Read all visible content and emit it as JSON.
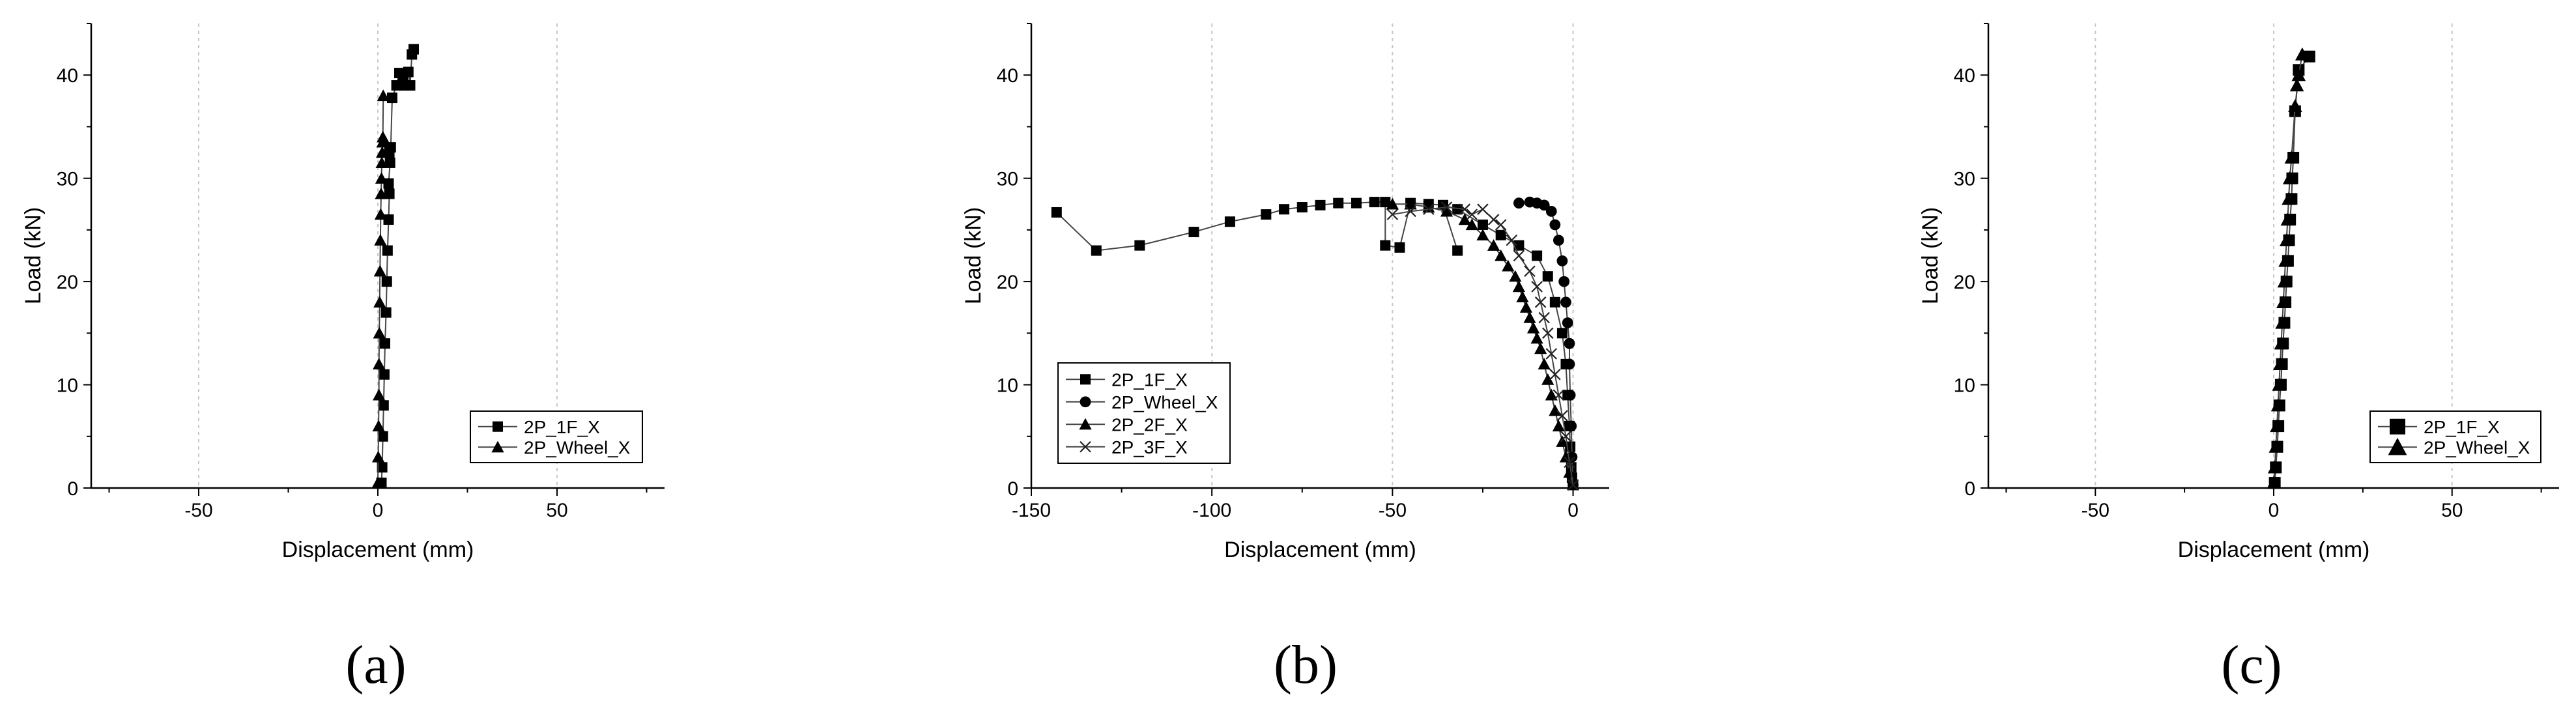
{
  "chart_data": [
    {
      "type": "line",
      "panel_label": "(a)",
      "xlabel": "Displacement (mm)",
      "ylabel": "Load (kN)",
      "xlim": [
        -80,
        80
      ],
      "ylim": [
        0,
        45
      ],
      "xticks": [
        -50,
        0,
        50
      ],
      "yticks": [
        0,
        10,
        20,
        30,
        40
      ],
      "grid": "vertical dashed",
      "legend_position": "lower-right",
      "series": [
        {
          "name": "2P_1F_X",
          "marker": "square",
          "x": [
            1,
            1.2,
            1.4,
            1.6,
            1.8,
            2.0,
            2.3,
            2.5,
            2.7,
            3.0,
            3.2,
            3.0,
            3.4,
            3.2,
            3.6,
            4.0,
            5.2,
            6.0,
            7.0,
            7.5,
            8.5,
            9.0,
            9.5,
            10
          ],
          "y": [
            0.5,
            2,
            5,
            8,
            11,
            14,
            17,
            20,
            23,
            26,
            28.5,
            29.5,
            31.5,
            32.5,
            33,
            37.8,
            39.0,
            40.2,
            39.5,
            39.0,
            40.3,
            39.0,
            42.0,
            42.5
          ]
        },
        {
          "name": "2P_Wheel_X",
          "marker": "triangle",
          "x": [
            0,
            0.1,
            0.2,
            0.3,
            0.3,
            0.4,
            0.5,
            0.6,
            0.7,
            0.8,
            0.9,
            1.0,
            1.1,
            1.2,
            1.3,
            1.4,
            1.5
          ],
          "y": [
            0.5,
            3,
            6,
            9,
            12,
            15,
            18,
            21,
            24,
            26.5,
            28.5,
            30,
            31.5,
            32.5,
            33.5,
            34,
            38
          ]
        }
      ]
    },
    {
      "type": "line",
      "panel_label": "(b)",
      "xlabel": "Displacement (mm)",
      "ylabel": "Load (kN)",
      "xlim": [
        -150,
        10
      ],
      "ylim": [
        0,
        45
      ],
      "xticks": [
        -150,
        -100,
        -50,
        0
      ],
      "yticks": [
        0,
        10,
        20,
        30,
        40
      ],
      "grid": "vertical dashed",
      "legend_position": "lower-left",
      "series": [
        {
          "name": "2P_1F_X",
          "marker": "square",
          "x": [
            -143,
            -132,
            -120,
            -105,
            -95,
            -85,
            -80,
            -75,
            -70,
            -65,
            -60,
            -55,
            -52,
            -52,
            -48,
            -45,
            -40,
            -36,
            -32,
            -36,
            -32,
            -25,
            -20,
            -15,
            -10,
            -7,
            -5,
            -3,
            -2,
            -1.5,
            -1,
            -0.8,
            -0.5,
            -0.3,
            0
          ],
          "y": [
            26.7,
            23,
            23.5,
            24.8,
            25.8,
            26.5,
            27.0,
            27.2,
            27.4,
            27.6,
            27.6,
            27.7,
            27.7,
            23.5,
            23.3,
            27.6,
            27.5,
            27.4,
            23.0,
            27.4,
            27.0,
            25.5,
            24.5,
            23.5,
            22.5,
            20.5,
            18,
            15,
            12,
            9,
            6,
            4,
            2,
            1,
            0.3
          ]
        },
        {
          "name": "2P_Wheel_X",
          "marker": "circle",
          "x": [
            -15,
            -12,
            -10,
            -8,
            -6,
            -5,
            -4,
            -3,
            -2.5,
            -2,
            -1.5,
            -1,
            -1,
            -0.8,
            -0.5,
            -0.3,
            0
          ],
          "y": [
            27.6,
            27.7,
            27.6,
            27.4,
            26.8,
            25.5,
            24,
            22,
            20,
            18,
            16,
            14,
            12,
            9,
            6,
            3,
            0.3
          ]
        },
        {
          "name": "2P_2F_X",
          "marker": "triangle",
          "x": [
            -50,
            -45,
            -40,
            -35,
            -30,
            -28,
            -25,
            -22,
            -20,
            -18,
            -16,
            -15,
            -14,
            -13,
            -12,
            -11,
            -10,
            -9,
            -8,
            -7,
            -6,
            -5,
            -4,
            -3,
            -2,
            -1,
            0
          ],
          "y": [
            27.5,
            27.5,
            27.2,
            26.8,
            26.0,
            25.5,
            24.5,
            23.5,
            22.5,
            21.5,
            20.5,
            19.5,
            18.5,
            17.5,
            16.5,
            15.5,
            14.5,
            13.5,
            12.0,
            10.5,
            9.0,
            7.5,
            6.0,
            4.5,
            3.0,
            1.5,
            0.3
          ]
        },
        {
          "name": "2P_3F_X",
          "marker": "x",
          "x": [
            -50,
            -45,
            -40,
            -35,
            -30,
            -28,
            -25,
            -22,
            -20,
            -17,
            -15,
            -12,
            -10,
            -9,
            -8,
            -7,
            -6,
            -5,
            -4,
            -3,
            -2,
            -1,
            0
          ],
          "y": [
            26.5,
            26.8,
            27.0,
            27.2,
            27.0,
            26.5,
            27.0,
            26.0,
            25.5,
            24.0,
            22.5,
            21.0,
            19.5,
            18,
            16.5,
            15,
            13.0,
            11.0,
            9.0,
            7.0,
            5.0,
            2.5,
            0.3
          ]
        }
      ]
    },
    {
      "type": "line",
      "panel_label": "(c)",
      "xlabel": "Displacement (mm)",
      "ylabel": "Load (kN)",
      "xlim": [
        -80,
        80
      ],
      "ylim": [
        0,
        45
      ],
      "xticks": [
        -50,
        0,
        50
      ],
      "yticks": [
        0,
        10,
        20,
        30,
        40
      ],
      "grid": "vertical dashed",
      "legend_position": "lower-right",
      "series": [
        {
          "name": "2P_1F_X",
          "marker": "square",
          "x": [
            0.3,
            0.6,
            1.0,
            1.3,
            1.6,
            2.0,
            2.3,
            2.6,
            3.0,
            3.3,
            3.6,
            4.0,
            4.3,
            4.6,
            5.0,
            5.2,
            5.5,
            6.0,
            7.0,
            10
          ],
          "y": [
            0.5,
            2,
            4,
            6,
            8,
            10,
            12,
            14,
            16,
            18,
            20,
            22,
            24,
            26,
            28,
            30,
            32,
            36.5,
            40.5,
            41.8
          ]
        },
        {
          "name": "2P_Wheel_X",
          "marker": "triangle",
          "x": [
            0,
            0.3,
            0.6,
            0.9,
            1.2,
            1.5,
            1.8,
            2.1,
            2.4,
            2.7,
            3.0,
            3.3,
            3.6,
            3.9,
            4.2,
            4.5,
            5.0,
            6.0,
            7.0,
            6.5,
            8.0
          ],
          "y": [
            0.5,
            2,
            4,
            6,
            8,
            10,
            12,
            14,
            16,
            18,
            20,
            22,
            24,
            26,
            28,
            30,
            32,
            37,
            40,
            39,
            42
          ]
        }
      ]
    }
  ]
}
